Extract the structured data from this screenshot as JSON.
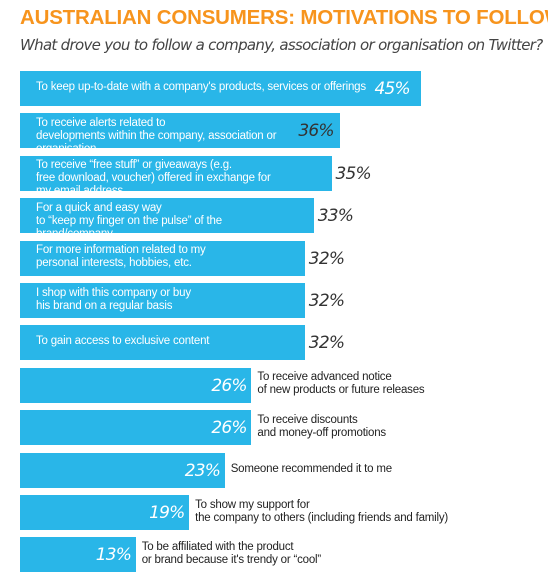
{
  "chart_data": {
    "type": "bar",
    "orientation": "horizontal",
    "title": "AUSTRALIAN CONSUMERS: MOTIVATIONS TO FOLLOW",
    "subtitle": "What drove you to follow a company, association or organisation on Twitter?",
    "categories": [
      "To keep up-to-date with a company's products, services or offerings",
      "To receive alerts related to developments within the company, association or organisation",
      "To receive “free stuff” or giveaways (e.g. free download, voucher) offered in exchange for my email address",
      "For a quick and easy way to “keep my finger on the pulse” of the brand/company",
      "For more information related to my personal interests, hobbies, etc.",
      "I shop with this company or buy his brand on a regular basis",
      "To gain access to exclusive content",
      "To receive advanced notice of new products or future releases",
      "To receive discounts and money-off promotions",
      "Someone recommended it to me",
      "To show my support for the company to others (including friends and family)",
      "To be affiliated with the product or brand because it's trendy or “cool”"
    ],
    "values": [
      45,
      36,
      35,
      33,
      32,
      32,
      32,
      26,
      26,
      23,
      19,
      13
    ],
    "value_labels": [
      "45%",
      "36%",
      "35%",
      "33%",
      "32%",
      "32%",
      "32%",
      "26%",
      "26%",
      "23%",
      "19%",
      "13%"
    ],
    "bar_color": "#29b6e8",
    "title_color": "#f7941d",
    "xlabel": "",
    "ylabel": "",
    "grid": false,
    "legend": "none"
  }
}
